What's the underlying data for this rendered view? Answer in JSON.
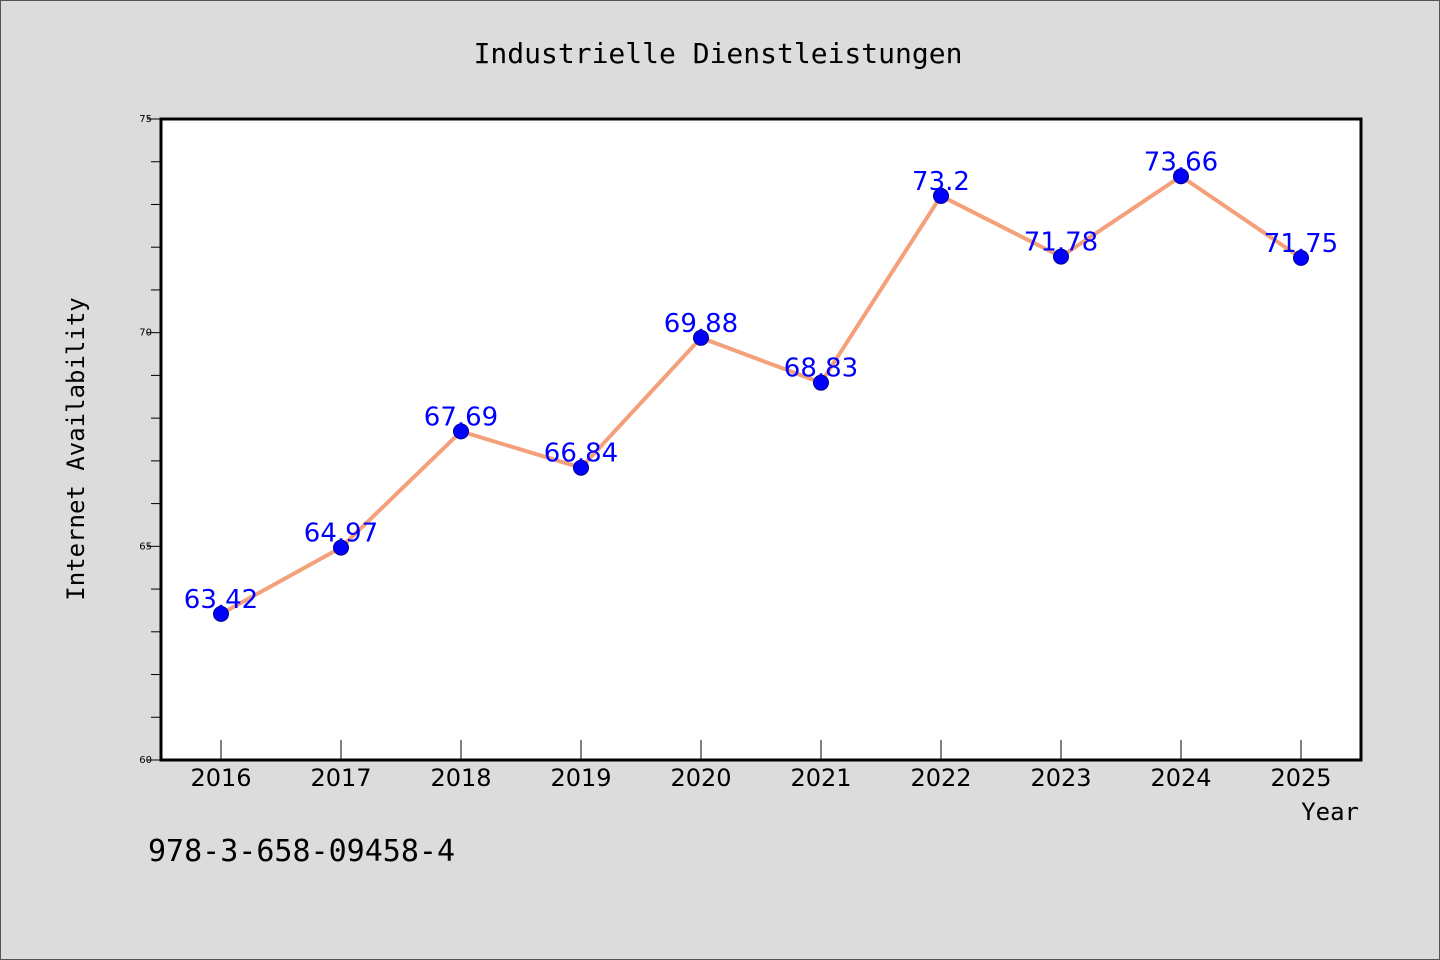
{
  "chart_data": {
    "type": "line",
    "title": "Industrielle Dienstleistungen",
    "xlabel": "Year",
    "ylabel": "Internet Availability",
    "categories": [
      "2016",
      "2017",
      "2018",
      "2019",
      "2020",
      "2021",
      "2022",
      "2023",
      "2024",
      "2025"
    ],
    "series": [
      {
        "values": [
          63.42,
          64.97,
          67.69,
          66.84,
          69.88,
          68.83,
          73.2,
          71.78,
          73.66,
          71.75
        ],
        "labels": [
          "63.42",
          "64.97",
          "67.69",
          "66.84",
          "69.88",
          "68.83",
          "73.2",
          "71.78",
          "73.66",
          "71.75"
        ],
        "line_color": "#f4a07a",
        "marker_color": "#0000ff"
      }
    ],
    "ylim": [
      60,
      75
    ],
    "yticks": [
      "60",
      "65",
      "70",
      "75"
    ],
    "grid": false,
    "legend": "none"
  },
  "footer_text": "978-3-658-09458-4"
}
